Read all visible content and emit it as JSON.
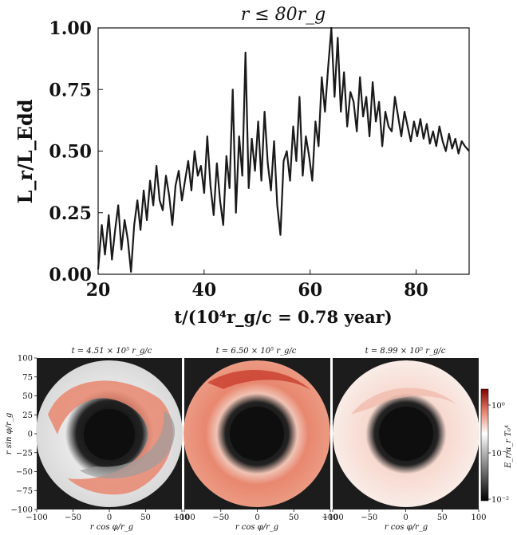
{
  "chart_data": [
    {
      "type": "line",
      "title": "r ≤ 80r_g",
      "xlabel": "t/(10⁴r_g/c = 0.78 year)",
      "ylabel": "L_r/L_Edd",
      "xlim": [
        20,
        90
      ],
      "ylim": [
        0,
        1.0
      ],
      "x_ticks": [
        "20",
        "40",
        "60",
        "80"
      ],
      "x_tick_values": [
        20,
        40,
        60,
        80
      ],
      "y_ticks": [
        "0.00",
        "0.25",
        "0.50",
        "0.75",
        "1.00"
      ],
      "y_tick_values": [
        0,
        0.25,
        0.5,
        0.75,
        1.0
      ],
      "color": "#1a1a1a",
      "series": [
        {
          "name": "L_r/L_Edd",
          "x": [
            20.0,
            20.7,
            21.3,
            22.0,
            22.6,
            23.2,
            23.8,
            24.4,
            25.0,
            25.6,
            26.2,
            26.8,
            27.4,
            28.0,
            28.6,
            29.2,
            29.8,
            30.4,
            31.0,
            31.6,
            32.2,
            32.8,
            33.4,
            34.0,
            34.6,
            35.2,
            35.8,
            36.4,
            37.0,
            37.6,
            38.2,
            38.8,
            39.4,
            40.0,
            40.6,
            41.2,
            41.8,
            42.4,
            43.0,
            43.6,
            44.2,
            44.8,
            45.4,
            46.0,
            46.6,
            47.2,
            47.8,
            48.4,
            49.0,
            49.6,
            50.2,
            50.8,
            51.4,
            52.0,
            52.6,
            53.2,
            53.8,
            54.4,
            55.0,
            55.6,
            56.2,
            56.8,
            57.4,
            58.0,
            58.6,
            59.2,
            59.8,
            60.4,
            61.0,
            61.6,
            62.2,
            62.8,
            63.4,
            64.0,
            64.6,
            65.2,
            65.8,
            66.4,
            67.0,
            67.6,
            68.2,
            68.8,
            69.4,
            70.0,
            70.6,
            71.2,
            71.8,
            72.4,
            73.0,
            73.6,
            74.2,
            74.8,
            75.4,
            76.0,
            76.6,
            77.2,
            77.8,
            78.4,
            79.0,
            79.6,
            80.2,
            80.8,
            81.4,
            82.0,
            82.6,
            83.2,
            83.8,
            84.4,
            85.0,
            85.6,
            86.2,
            86.8,
            87.4,
            88.0,
            88.6,
            89.2,
            90.0
          ],
          "y": [
            0.02,
            0.2,
            0.08,
            0.24,
            0.06,
            0.18,
            0.28,
            0.1,
            0.22,
            0.14,
            0.01,
            0.2,
            0.3,
            0.18,
            0.34,
            0.22,
            0.38,
            0.28,
            0.44,
            0.3,
            0.26,
            0.4,
            0.32,
            0.2,
            0.36,
            0.42,
            0.3,
            0.38,
            0.46,
            0.34,
            0.5,
            0.4,
            0.44,
            0.33,
            0.56,
            0.36,
            0.24,
            0.45,
            0.3,
            0.2,
            0.48,
            0.35,
            0.75,
            0.25,
            0.56,
            0.4,
            0.9,
            0.35,
            0.55,
            0.42,
            0.62,
            0.38,
            0.66,
            0.45,
            0.34,
            0.54,
            0.28,
            0.16,
            0.46,
            0.5,
            0.38,
            0.6,
            0.46,
            0.72,
            0.4,
            0.56,
            0.48,
            0.38,
            0.62,
            0.52,
            0.8,
            0.66,
            0.84,
            1.0,
            0.72,
            0.96,
            0.66,
            0.82,
            0.6,
            0.74,
            0.7,
            0.58,
            0.8,
            0.64,
            0.72,
            0.56,
            0.78,
            0.62,
            0.7,
            0.52,
            0.66,
            0.6,
            0.58,
            0.72,
            0.64,
            0.56,
            0.66,
            0.6,
            0.54,
            0.62,
            0.56,
            0.63,
            0.55,
            0.61,
            0.53,
            0.58,
            0.52,
            0.6,
            0.54,
            0.5,
            0.57,
            0.51,
            0.55,
            0.49,
            0.54,
            0.52,
            0.5
          ]
        }
      ]
    },
    {
      "type": "heatmap",
      "title": "t = 4.51 × 10⁵ r_g/c",
      "xlabel": "r cos φ/r_g",
      "ylabel": "r sin φ/r_g",
      "xlim": [
        -100,
        100
      ],
      "ylim": [
        -100,
        100
      ],
      "x_ticks": [
        "−100",
        "−50",
        "0",
        "50",
        "100"
      ],
      "y_ticks": [
        "100",
        "75",
        "50",
        "25",
        "0",
        "−25",
        "−50",
        "−75",
        "−100"
      ],
      "description_values": {
        "state": "mixed red and grey spiral"
      }
    },
    {
      "type": "heatmap",
      "title": "t = 6.50 × 10⁵ r_g/c",
      "xlabel": "r cos φ/r_g",
      "xlim": [
        -100,
        100
      ],
      "ylim": [
        -100,
        100
      ],
      "x_ticks": [
        "−100",
        "−50",
        "0",
        "50",
        "100"
      ],
      "description_values": {
        "state": "predominantly red"
      }
    },
    {
      "type": "heatmap",
      "title": "t = 8.99 × 10⁵ r_g/c",
      "xlabel": "r cos φ/r_g",
      "xlim": [
        -100,
        100
      ],
      "ylim": [
        -100,
        100
      ],
      "x_ticks": [
        "−100",
        "−50",
        "0",
        "50",
        "100"
      ],
      "description_values": {
        "state": "pale pink and white"
      }
    }
  ],
  "colorbar": {
    "label": "E_r/a_r T₀⁴",
    "ticks": [
      "10⁰",
      "10⁻¹",
      "10⁻²"
    ],
    "tick_values": [
      1,
      0.1,
      0.01
    ],
    "scale": "log",
    "colors": [
      "#000000",
      "#ffffff",
      "#8b0000"
    ]
  },
  "colors": {
    "line": "#1a1a1a",
    "panel_bg": "#1c1c1c",
    "red_dark": "#c0392b",
    "red_mid": "#e8897a",
    "pink": "#f5c8bd",
    "grey": "#bfbfbf"
  }
}
